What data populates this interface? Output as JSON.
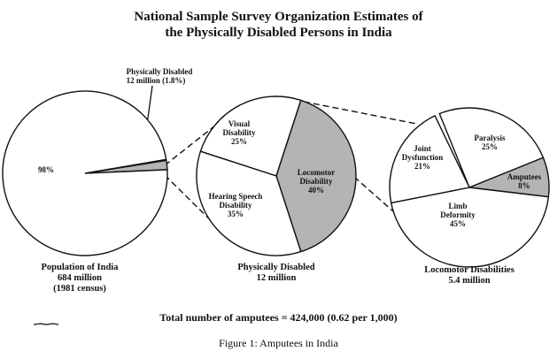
{
  "title_lines": [
    "National Sample Survey Organization Estimates of",
    "the Physically Disabled Persons in India"
  ],
  "chart_data": [
    {
      "type": "pie",
      "categories": [
        "Physically Disabled",
        null
      ],
      "values": [
        1.8,
        98
      ],
      "value_labels": [
        "12 million (1.8%)",
        "98%"
      ],
      "colors": [
        "#b4b4b4",
        "#ffffff"
      ],
      "caption": [
        "Population of India",
        "684 million",
        "(1981 census)"
      ]
    },
    {
      "type": "pie",
      "categories": [
        "Visual Disability",
        "Locomotor Disability",
        "Hearing Speech Disability"
      ],
      "values": [
        25,
        40,
        35
      ],
      "value_labels": [
        "25%",
        "40%",
        "35%"
      ],
      "colors": [
        "#ffffff",
        "#b4b4b4",
        "#ffffff"
      ],
      "caption": [
        "Physically Disabled",
        "12 million"
      ]
    },
    {
      "type": "pie",
      "categories": [
        "Paralysis",
        "Amputees",
        "Limb Deformity",
        "Joint Dysfunction"
      ],
      "values": [
        25,
        8,
        45,
        21
      ],
      "value_labels": [
        "25%",
        "8%",
        "45%",
        "21%"
      ],
      "colors": [
        "#ffffff",
        "#b4b4b4",
        "#ffffff",
        "#ffffff"
      ],
      "caption": [
        "Locomotor Disabilities",
        "5.4 million"
      ]
    }
  ],
  "footer": "Total number of amputees = 424,000 (0.62 per 1,000)",
  "figure_caption": "Figure 1: Amputees in India"
}
